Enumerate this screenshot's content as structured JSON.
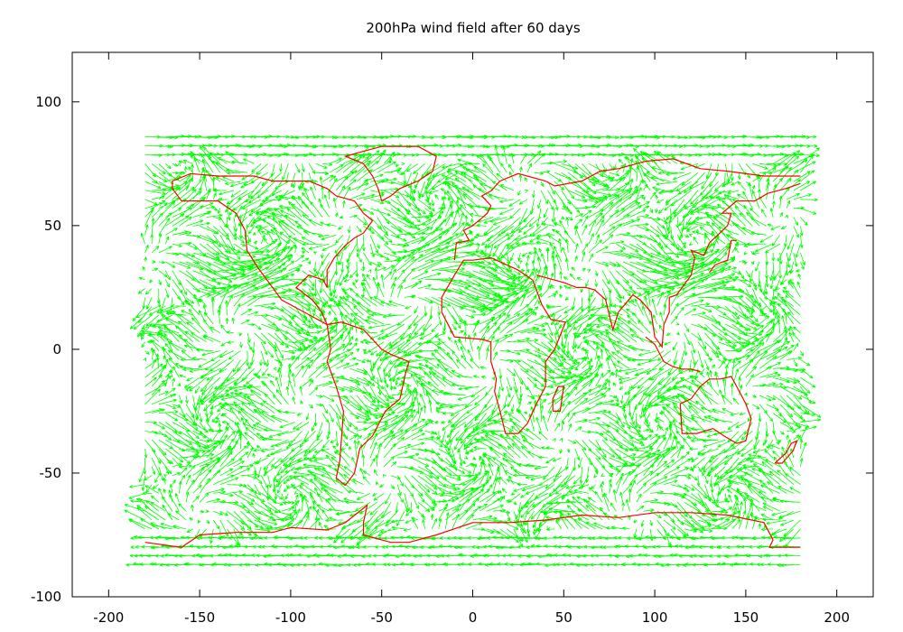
{
  "chart_data": {
    "type": "vector-field",
    "title": "200hPa wind field after 60 days",
    "xlim": [
      -220,
      220
    ],
    "ylim": [
      -100,
      120
    ],
    "x_ticks": [
      -200,
      -150,
      -100,
      -50,
      0,
      50,
      100,
      150,
      200
    ],
    "y_ticks": [
      -100,
      -50,
      0,
      50,
      100
    ],
    "x_tick_labels": [
      "-200",
      "-150",
      "-100",
      "-50",
      "0",
      "50",
      "100",
      "150",
      "200"
    ],
    "y_tick_labels": [
      "-100",
      "-50",
      "0",
      "50",
      "100"
    ],
    "grid": false,
    "legend": "none",
    "colors": {
      "vectors": "#00ff00",
      "coastlines": "#ff0000",
      "axes": "#000000"
    },
    "wind_vectors": {
      "lon_range": [
        -180,
        180
      ],
      "lat_range": [
        -87,
        87
      ],
      "description_note": ""
    },
    "coastlines": [
      {
        "name": "south-america-west",
        "points": [
          [
            -80,
            10
          ],
          [
            -78,
            0
          ],
          [
            -80,
            -5
          ],
          [
            -75,
            -15
          ],
          [
            -71,
            -25
          ],
          [
            -72,
            -35
          ],
          [
            -73,
            -45
          ],
          [
            -75,
            -52
          ],
          [
            -70,
            -55
          ]
        ]
      },
      {
        "name": "south-america-east",
        "points": [
          [
            -70,
            -55
          ],
          [
            -65,
            -50
          ],
          [
            -62,
            -40
          ],
          [
            -55,
            -35
          ],
          [
            -48,
            -25
          ],
          [
            -40,
            -20
          ],
          [
            -37,
            -10
          ],
          [
            -35,
            -5
          ],
          [
            -45,
            -2
          ],
          [
            -50,
            0
          ],
          [
            -60,
            8
          ],
          [
            -72,
            11
          ],
          [
            -80,
            10
          ]
        ]
      },
      {
        "name": "north-america-west",
        "points": [
          [
            -165,
            65
          ],
          [
            -160,
            60
          ],
          [
            -150,
            60
          ],
          [
            -140,
            60
          ],
          [
            -130,
            55
          ],
          [
            -125,
            48
          ],
          [
            -124,
            40
          ],
          [
            -118,
            33
          ],
          [
            -110,
            25
          ],
          [
            -105,
            20
          ],
          [
            -95,
            16
          ],
          [
            -85,
            12
          ],
          [
            -80,
            10
          ]
        ]
      },
      {
        "name": "north-america-east",
        "points": [
          [
            -80,
            10
          ],
          [
            -83,
            15
          ],
          [
            -88,
            20
          ],
          [
            -90,
            21
          ],
          [
            -97,
            25
          ],
          [
            -90,
            30
          ],
          [
            -82,
            28
          ],
          [
            -80,
            25
          ],
          [
            -80,
            32
          ],
          [
            -76,
            37
          ],
          [
            -70,
            42
          ],
          [
            -65,
            45
          ],
          [
            -60,
            47
          ],
          [
            -55,
            52
          ],
          [
            -60,
            55
          ],
          [
            -65,
            60
          ],
          [
            -75,
            62
          ],
          [
            -80,
            65
          ],
          [
            -90,
            68
          ],
          [
            -100,
            68
          ],
          [
            -110,
            68
          ],
          [
            -120,
            70
          ],
          [
            -140,
            70
          ],
          [
            -155,
            71
          ],
          [
            -165,
            68
          ],
          [
            -165,
            65
          ]
        ]
      },
      {
        "name": "greenland",
        "points": [
          [
            -50,
            60
          ],
          [
            -45,
            62
          ],
          [
            -40,
            65
          ],
          [
            -30,
            68
          ],
          [
            -22,
            72
          ],
          [
            -20,
            78
          ],
          [
            -30,
            82
          ],
          [
            -50,
            82
          ],
          [
            -60,
            80
          ],
          [
            -70,
            78
          ],
          [
            -60,
            75
          ],
          [
            -55,
            70
          ],
          [
            -52,
            65
          ],
          [
            -50,
            60
          ]
        ]
      },
      {
        "name": "africa",
        "points": [
          [
            -17,
            15
          ],
          [
            -10,
            5
          ],
          [
            5,
            4
          ],
          [
            10,
            3
          ],
          [
            10,
            -5
          ],
          [
            13,
            -12
          ],
          [
            12,
            -17
          ],
          [
            15,
            -25
          ],
          [
            18,
            -34
          ],
          [
            25,
            -34
          ],
          [
            30,
            -30
          ],
          [
            35,
            -22
          ],
          [
            40,
            -15
          ],
          [
            40,
            -5
          ],
          [
            45,
            0
          ],
          [
            51,
            11
          ],
          [
            43,
            12
          ],
          [
            38,
            18
          ],
          [
            33,
            28
          ],
          [
            25,
            32
          ],
          [
            10,
            37
          ],
          [
            0,
            36
          ],
          [
            -5,
            36
          ],
          [
            -10,
            30
          ],
          [
            -17,
            21
          ],
          [
            -17,
            15
          ]
        ]
      },
      {
        "name": "europe",
        "points": [
          [
            -10,
            36
          ],
          [
            -9,
            43
          ],
          [
            -2,
            44
          ],
          [
            -5,
            48
          ],
          [
            0,
            50
          ],
          [
            5,
            53
          ],
          [
            8,
            55
          ],
          [
            10,
            58
          ],
          [
            5,
            62
          ],
          [
            10,
            64
          ],
          [
            15,
            68
          ],
          [
            25,
            71
          ],
          [
            40,
            68
          ],
          [
            45,
            66
          ],
          [
            60,
            68
          ],
          [
            70,
            72
          ],
          [
            80,
            73
          ]
        ]
      },
      {
        "name": "asia-south",
        "points": [
          [
            35,
            30
          ],
          [
            45,
            28
          ],
          [
            50,
            27
          ],
          [
            57,
            25
          ],
          [
            62,
            25
          ],
          [
            67,
            24
          ],
          [
            73,
            20
          ],
          [
            77,
            8
          ],
          [
            80,
            15
          ],
          [
            88,
            22
          ],
          [
            92,
            20
          ],
          [
            98,
            15
          ],
          [
            100,
            5
          ],
          [
            104,
            1
          ],
          [
            105,
            10
          ],
          [
            108,
            15
          ],
          [
            108,
            21
          ],
          [
            112,
            22
          ],
          [
            120,
            30
          ],
          [
            122,
            37
          ],
          [
            120,
            40
          ],
          [
            127,
            38
          ],
          [
            130,
            43
          ],
          [
            140,
            50
          ],
          [
            142,
            55
          ],
          [
            137,
            55
          ],
          [
            145,
            60
          ],
          [
            155,
            60
          ],
          [
            162,
            63
          ],
          [
            172,
            65
          ],
          [
            180,
            67
          ]
        ]
      },
      {
        "name": "asia-north",
        "points": [
          [
            80,
            73
          ],
          [
            95,
            76
          ],
          [
            110,
            77
          ],
          [
            125,
            73
          ],
          [
            140,
            72
          ],
          [
            160,
            70
          ],
          [
            180,
            70
          ]
        ]
      },
      {
        "name": "australia",
        "points": [
          [
            114,
            -22
          ],
          [
            115,
            -34
          ],
          [
            123,
            -34
          ],
          [
            132,
            -32
          ],
          [
            138,
            -35
          ],
          [
            145,
            -38
          ],
          [
            150,
            -37
          ],
          [
            153,
            -28
          ],
          [
            150,
            -22
          ],
          [
            145,
            -15
          ],
          [
            142,
            -11
          ],
          [
            136,
            -12
          ],
          [
            130,
            -12
          ],
          [
            125,
            -15
          ],
          [
            120,
            -20
          ],
          [
            114,
            -22
          ]
        ]
      },
      {
        "name": "japan",
        "points": [
          [
            130,
            31
          ],
          [
            133,
            34
          ],
          [
            136,
            35
          ],
          [
            140,
            36
          ],
          [
            141,
            40
          ],
          [
            142,
            44
          ],
          [
            145,
            44
          ]
        ]
      },
      {
        "name": "madagascar",
        "points": [
          [
            44,
            -25
          ],
          [
            44,
            -20
          ],
          [
            47,
            -15
          ],
          [
            50,
            -15
          ],
          [
            48,
            -25
          ],
          [
            44,
            -25
          ]
        ]
      },
      {
        "name": "new-zealand",
        "points": [
          [
            166,
            -46
          ],
          [
            172,
            -42
          ],
          [
            175,
            -38
          ],
          [
            178,
            -37
          ],
          [
            176,
            -41
          ],
          [
            170,
            -46
          ],
          [
            166,
            -46
          ]
        ]
      },
      {
        "name": "indonesia",
        "points": [
          [
            95,
            5
          ],
          [
            100,
            2
          ],
          [
            105,
            -5
          ],
          [
            110,
            -7
          ],
          [
            115,
            -8
          ],
          [
            120,
            -8
          ],
          [
            125,
            -9
          ]
        ]
      },
      {
        "name": "antarctica",
        "points": [
          [
            -180,
            -78
          ],
          [
            -160,
            -80
          ],
          [
            -150,
            -75
          ],
          [
            -130,
            -74
          ],
          [
            -110,
            -74
          ],
          [
            -100,
            -72
          ],
          [
            -80,
            -73
          ],
          [
            -70,
            -70
          ],
          [
            -58,
            -63
          ],
          [
            -60,
            -70
          ],
          [
            -60,
            -75
          ],
          [
            -45,
            -78
          ],
          [
            -35,
            -78
          ],
          [
            -20,
            -75
          ],
          [
            0,
            -70
          ],
          [
            20,
            -70
          ],
          [
            40,
            -69
          ],
          [
            60,
            -67
          ],
          [
            80,
            -68
          ],
          [
            100,
            -66
          ],
          [
            120,
            -66
          ],
          [
            140,
            -67
          ],
          [
            160,
            -70
          ],
          [
            165,
            -77
          ],
          [
            163,
            -80
          ],
          [
            180,
            -80
          ]
        ]
      }
    ]
  }
}
